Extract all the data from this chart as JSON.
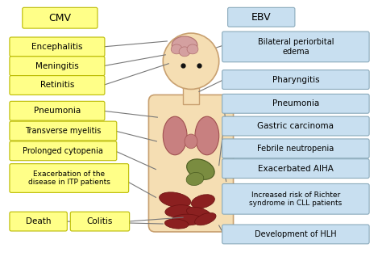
{
  "fig_width": 4.74,
  "fig_height": 3.28,
  "cmv_label": "CMV",
  "ebv_label": "EBV",
  "cmv_box_color": "#ffff88",
  "cmv_border_color": "#bbbb00",
  "ebv_box_color": "#c8dff0",
  "ebv_border_color": "#8aaabb",
  "cmv_items": [
    "Encephalitis",
    "Meningitis",
    "Retinitis",
    "Pneumonia",
    "Transverse myelitis",
    "Prolonged cytopenia",
    "Exacerbation of the\ndisease in ITP patients",
    "Death",
    "Colitis"
  ],
  "ebv_items": [
    "Bilateral periorbital\nedema",
    "Pharyngitis",
    "Pneumonia",
    "Gastric carcinoma",
    "Febrile neutropenia",
    "Exacerbated AIHA",
    "Increased risk of Richter\nsyndrome in CLL patients",
    "Development of HLH"
  ],
  "line_color": "#777777",
  "body_skin_color": "#f5deb3",
  "body_outline_color": "#c8a070",
  "brain_color": "#d4a0a0",
  "brain_outline": "#b07070",
  "thyroid_color": "#c88080",
  "thyroid_outline": "#a05050",
  "stomach_color": "#7a8c40",
  "stomach_outline": "#4a5c20",
  "intestine_color": "#8b2020",
  "intestine_outline": "#6a1010",
  "eye_color": "#111111"
}
